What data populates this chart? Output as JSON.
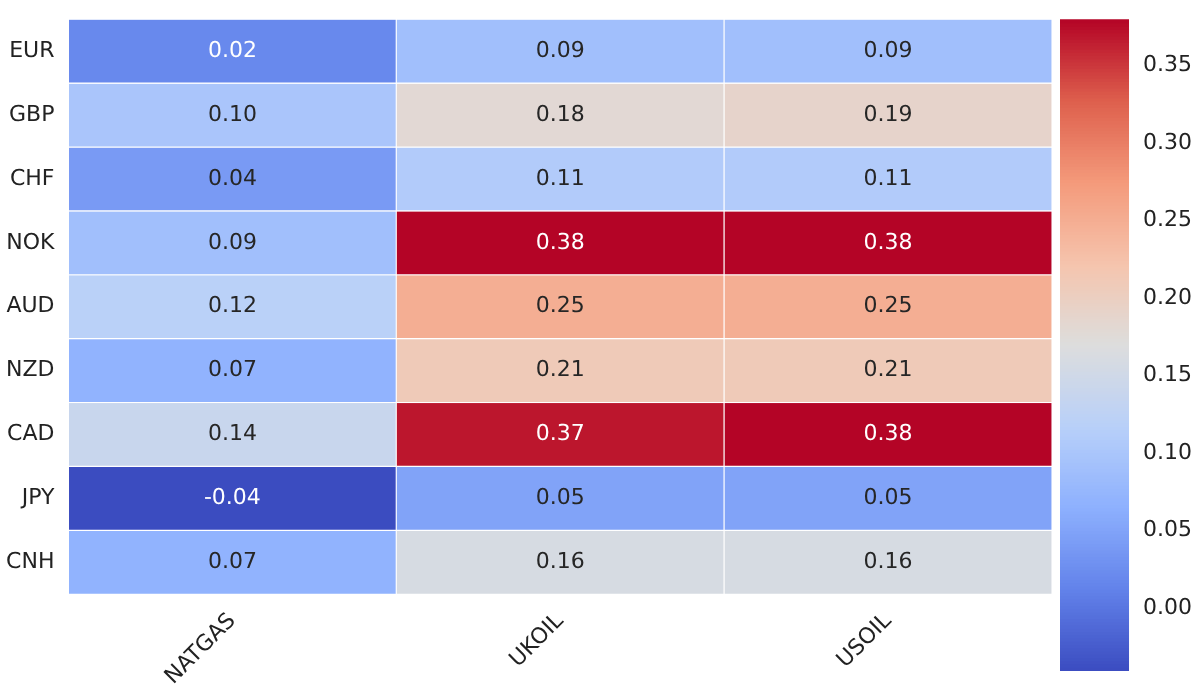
{
  "chart_data": {
    "type": "heatmap",
    "categories": [
      "NATGAS",
      "UKOIL",
      "USOIL"
    ],
    "y_categories": [
      "EUR",
      "GBP",
      "CHF",
      "NOK",
      "AUD",
      "NZD",
      "CAD",
      "JPY",
      "CNH"
    ],
    "cells": [
      [
        0.02,
        0.09,
        0.09
      ],
      [
        0.1,
        0.18,
        0.19
      ],
      [
        0.04,
        0.11,
        0.11
      ],
      [
        0.09,
        0.38,
        0.38
      ],
      [
        0.12,
        0.25,
        0.25
      ],
      [
        0.07,
        0.21,
        0.21
      ],
      [
        0.14,
        0.37,
        0.38
      ],
      [
        -0.04,
        0.05,
        0.05
      ],
      [
        0.07,
        0.16,
        0.16
      ]
    ],
    "clim": [
      -0.04,
      0.38
    ],
    "cticks": [
      {
        "value": 0,
        "label": "0.00"
      },
      0.05,
      {
        "value": 0.1,
        "label": "0.10"
      },
      0.15,
      {
        "value": 0.2,
        "label": "0.20"
      },
      0.25,
      {
        "value": 0.3,
        "label": "0.30"
      },
      0.35
    ],
    "cell_labels": [
      [
        "0.02",
        "0.09",
        "0.09"
      ],
      [
        "0.10",
        "0.18",
        "0.19"
      ],
      [
        "0.04",
        "0.11",
        "0.11"
      ],
      [
        "0.09",
        "0.38",
        "0.38"
      ],
      [
        "0.12",
        "0.25",
        "0.25"
      ],
      [
        "0.07",
        "0.21",
        "0.21"
      ],
      [
        "0.14",
        "0.37",
        "0.38"
      ],
      [
        "-0.04",
        "0.05",
        "0.05"
      ],
      [
        "0.07",
        "0.16",
        "0.16"
      ]
    ]
  }
}
